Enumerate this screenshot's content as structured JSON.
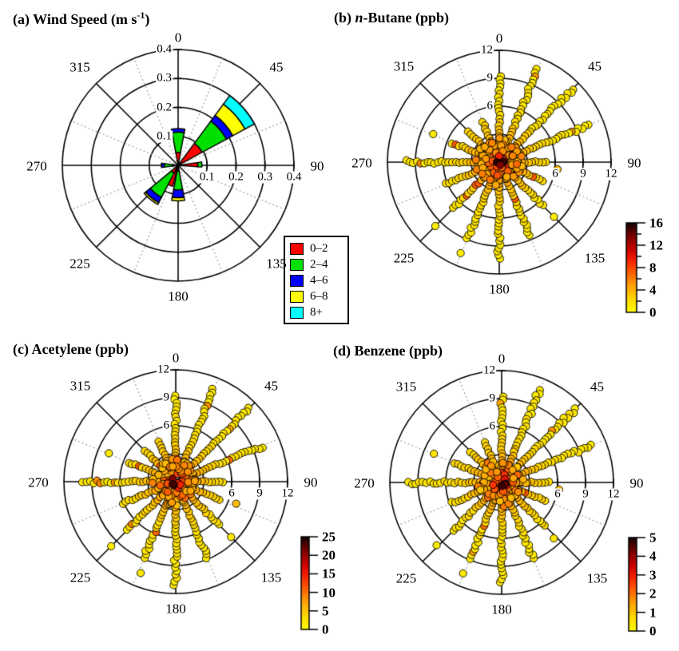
{
  "figure": {
    "titles": {
      "a": {
        "pre": "(a) Wind Speed (m s",
        "sup": "-1",
        "post": ")"
      },
      "b": {
        "pre": "(b) ",
        "italic": "n",
        "post": "-Butane (ppb)"
      },
      "c": {
        "text": "(c) Acetylene (ppb)"
      },
      "d": {
        "text": "(d) Benzene (ppb)"
      }
    },
    "palette": {
      "gradient_stops": [
        [
          0,
          "#FFFF00"
        ],
        [
          0.15,
          "#FFD800"
        ],
        [
          0.3,
          "#FFA000"
        ],
        [
          0.45,
          "#FF5A00"
        ],
        [
          0.6,
          "#F01800"
        ],
        [
          0.72,
          "#C00000"
        ],
        [
          0.85,
          "#7A0000"
        ],
        [
          1,
          "#100000"
        ]
      ],
      "point_outline": "#000000",
      "grid": "#000000",
      "dotted_grid": "#A0A0A0"
    }
  },
  "chart_data": [
    {
      "type": "windrose-stacked-bar",
      "title": "(a) Wind Speed (m s-1)",
      "angle_labels": [
        "0",
        "45",
        "90",
        "135",
        "180",
        "225",
        "270",
        "315"
      ],
      "radial_ticks": [
        0.1,
        0.2,
        0.3,
        0.4
      ],
      "radial_tick_labels": [
        "0.1",
        "0.2",
        "0.3",
        "0.4"
      ],
      "rmax": 0.4,
      "grid": {
        "solid_diameters_deg": [
          0,
          45,
          90,
          135
        ],
        "dotted_diameters_deg": [
          22.5,
          67.5,
          112.5,
          157.5
        ]
      },
      "speed_bins": [
        {
          "label": "0–2",
          "color": "#FF0000"
        },
        {
          "label": "2–4",
          "color": "#00E000"
        },
        {
          "label": "4–6",
          "color": "#0000FF"
        },
        {
          "label": "6–8",
          "color": "#FFFF00"
        },
        {
          "label": "8+",
          "color": "#00FFFF"
        }
      ],
      "sectors": [
        {
          "center_deg": 0,
          "width_deg": 21,
          "bin_outer_radii": [
            0.045,
            0.115,
            0.127,
            null,
            null
          ]
        },
        {
          "center_deg": 49,
          "width_deg": 25,
          "bin_outer_radii": [
            0.095,
            0.19,
            0.215,
            0.263,
            0.3
          ]
        },
        {
          "center_deg": 88,
          "width_deg": 12,
          "bin_outer_radii": [
            0.068,
            0.082,
            null,
            null,
            null
          ]
        },
        {
          "center_deg": 180,
          "width_deg": 21,
          "bin_outer_radii": [
            0.02,
            0.085,
            0.112,
            0.123,
            null
          ]
        },
        {
          "center_deg": 202,
          "width_deg": 15,
          "bin_outer_radii": [
            0.075,
            null,
            null,
            null,
            null
          ]
        },
        {
          "center_deg": 219,
          "width_deg": 23,
          "bin_outer_radii": [
            0.03,
            0.125,
            0.145,
            0.152,
            null
          ]
        },
        {
          "center_deg": 270,
          "width_deg": 14,
          "bin_outer_radii": [
            0.02,
            0.048,
            0.058,
            null,
            null
          ]
        }
      ]
    },
    {
      "type": "polar-scatter",
      "title": "(b) n-Butane (ppb)",
      "angle_labels": [
        "0",
        "45",
        "90",
        "135",
        "180",
        "225",
        "270",
        "315"
      ],
      "radial_ticks": [
        3,
        6,
        9,
        12
      ],
      "radial_tick_labels": [
        "3",
        "6",
        "9",
        "12"
      ],
      "rmax": 12,
      "seed": 11,
      "value_max": 16,
      "spokes": [
        {
          "angle": 0,
          "rmax": 9.4
        },
        {
          "angle": 22.5,
          "rmax": 11.0
        },
        {
          "angle": 45,
          "rmax": 11.3
        },
        {
          "angle": 67.5,
          "rmax": 10.5
        },
        {
          "angle": 90,
          "rmax": 5.4
        },
        {
          "angle": 112.5,
          "rmax": 5.2
        },
        {
          "angle": 135,
          "rmax": 6.6
        },
        {
          "angle": 157.5,
          "rmax": 8.8
        },
        {
          "angle": 180,
          "rmax": 10.7
        },
        {
          "angle": 202.5,
          "rmax": 9.0
        },
        {
          "angle": 225,
          "rmax": 7.3
        },
        {
          "angle": 247.5,
          "rmax": 6.2
        },
        {
          "angle": 270,
          "rmax": 10.1
        },
        {
          "angle": 292.5,
          "rmax": 5.6
        },
        {
          "angle": 315,
          "rmax": 5.0
        },
        {
          "angle": 337.5,
          "rmax": 4.7
        }
      ],
      "core_cluster": {
        "count": 70,
        "rmax": 2.6,
        "center_value_max": 16
      },
      "outliers": [
        [
          203,
          10.6,
          1.0
        ],
        [
          293,
          7.7,
          1.2
        ],
        [
          135,
          8.3,
          1.1
        ],
        [
          97,
          6.3,
          3.5
        ],
        [
          225,
          9.7,
          1.0
        ]
      ],
      "colorbar": {
        "min": 0,
        "max": 16,
        "major_ticks": [
          "0",
          "4",
          "8",
          "12",
          "16"
        ],
        "minor_ticks": [
          2,
          6,
          10,
          14
        ]
      }
    },
    {
      "type": "polar-scatter",
      "title": "(c) Acetylene (ppb)",
      "angle_labels": [
        "0",
        "45",
        "90",
        "135",
        "180",
        "225",
        "270",
        "315"
      ],
      "radial_ticks": [
        3,
        6,
        9,
        12
      ],
      "radial_tick_labels": [
        "3",
        "6",
        "9",
        "12"
      ],
      "rmax": 12,
      "seed": 22,
      "value_max": 25,
      "spokes": [
        {
          "angle": 0,
          "rmax": 9.6
        },
        {
          "angle": 22.5,
          "rmax": 10.8
        },
        {
          "angle": 45,
          "rmax": 11.2
        },
        {
          "angle": 67.5,
          "rmax": 10.3
        },
        {
          "angle": 90,
          "rmax": 5.2
        },
        {
          "angle": 112.5,
          "rmax": 5.4
        },
        {
          "angle": 135,
          "rmax": 6.8
        },
        {
          "angle": 157.5,
          "rmax": 9.0
        },
        {
          "angle": 180,
          "rmax": 11.3
        },
        {
          "angle": 202.5,
          "rmax": 9.2
        },
        {
          "angle": 225,
          "rmax": 7.5
        },
        {
          "angle": 247.5,
          "rmax": 6.3
        },
        {
          "angle": 270,
          "rmax": 10.0
        },
        {
          "angle": 292.5,
          "rmax": 5.7
        },
        {
          "angle": 315,
          "rmax": 5.0
        },
        {
          "angle": 337.5,
          "rmax": 4.8
        }
      ],
      "core_cluster": {
        "count": 70,
        "rmax": 2.6,
        "center_value_max": 25
      },
      "outliers": [
        [
          201,
          10.5,
          2.0
        ],
        [
          293,
          7.8,
          1.8
        ],
        [
          135,
          8.4,
          1.8
        ],
        [
          110,
          6.9,
          5.5
        ],
        [
          225,
          9.8,
          1.6
        ]
      ],
      "colorbar": {
        "min": 0,
        "max": 25,
        "major_ticks": [
          "0",
          "5",
          "10",
          "15",
          "20",
          "25"
        ],
        "minor_ticks": []
      }
    },
    {
      "type": "polar-scatter",
      "title": "(d) Benzene (ppb)",
      "angle_labels": [
        "0",
        "45",
        "90",
        "135",
        "180",
        "225",
        "270",
        "315"
      ],
      "radial_ticks": [
        3,
        6,
        9,
        12
      ],
      "radial_tick_labels": [
        "3",
        "6",
        "9",
        "12"
      ],
      "rmax": 12,
      "seed": 33,
      "value_max": 5,
      "spokes": [
        {
          "angle": 0,
          "rmax": 9.3
        },
        {
          "angle": 22.5,
          "rmax": 10.9
        },
        {
          "angle": 45,
          "rmax": 11.2
        },
        {
          "angle": 67.5,
          "rmax": 10.4
        },
        {
          "angle": 90,
          "rmax": 5.3
        },
        {
          "angle": 112.5,
          "rmax": 5.3
        },
        {
          "angle": 135,
          "rmax": 6.7
        },
        {
          "angle": 157.5,
          "rmax": 8.9
        },
        {
          "angle": 180,
          "rmax": 11.0
        },
        {
          "angle": 202.5,
          "rmax": 9.1
        },
        {
          "angle": 225,
          "rmax": 7.4
        },
        {
          "angle": 247.5,
          "rmax": 6.1
        },
        {
          "angle": 270,
          "rmax": 10.0
        },
        {
          "angle": 292.5,
          "rmax": 5.6
        },
        {
          "angle": 315,
          "rmax": 5.0
        },
        {
          "angle": 337.5,
          "rmax": 4.7
        }
      ],
      "core_cluster": {
        "count": 70,
        "rmax": 2.6,
        "center_value_max": 5
      },
      "outliers": [
        [
          203,
          10.6,
          0.4
        ],
        [
          293,
          7.9,
          0.5
        ],
        [
          137,
          8.2,
          0.4
        ],
        [
          97,
          6.2,
          1.1
        ],
        [
          226,
          9.7,
          0.35
        ]
      ],
      "colorbar": {
        "min": 0,
        "max": 5,
        "major_ticks": [
          "0",
          "1",
          "2",
          "3",
          "4",
          "5"
        ],
        "minor_ticks": []
      }
    }
  ]
}
